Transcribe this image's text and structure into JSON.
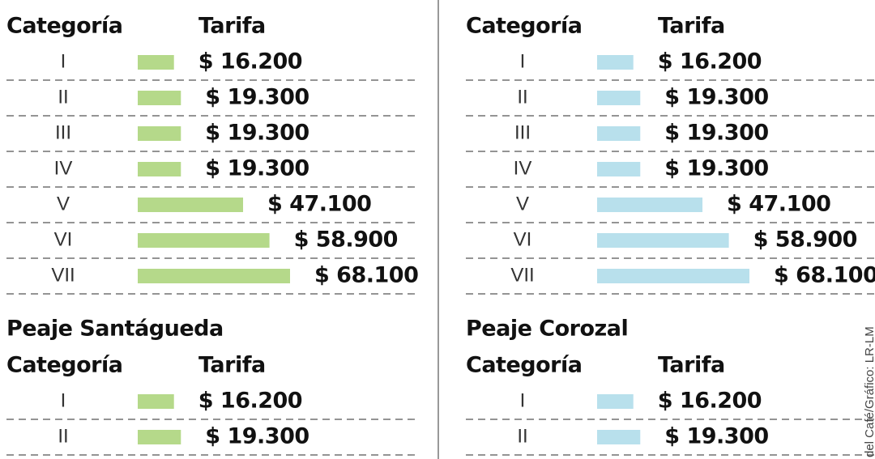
{
  "chart_data": [
    {
      "type": "bar",
      "category_header": "Categoría",
      "value_header": "Tarifa",
      "categories": [
        "I",
        "II",
        "III",
        "IV",
        "V",
        "VI",
        "VII"
      ],
      "values": [
        16200,
        19300,
        19300,
        19300,
        47100,
        58900,
        68100
      ],
      "value_labels": [
        "$ 16.200",
        "$ 19.300",
        "$ 19.300",
        "$ 19.300",
        "$ 47.100",
        "$ 58.900",
        "$ 68.100"
      ],
      "color": "#b5d98a"
    },
    {
      "type": "bar",
      "category_header": "Categoría",
      "value_header": "Tarifa",
      "categories": [
        "I",
        "II",
        "III",
        "IV",
        "V",
        "VI",
        "VII"
      ],
      "values": [
        16200,
        19300,
        19300,
        19300,
        47100,
        58900,
        68100
      ],
      "value_labels": [
        "$ 16.200",
        "$ 19.300",
        "$ 19.300",
        "$ 19.300",
        "$ 47.100",
        "$ 58.900",
        "$ 68.100"
      ],
      "color": "#b8e0ec"
    },
    {
      "type": "bar",
      "title": "Peaje Santágueda",
      "category_header": "Categoría",
      "value_header": "Tarifa",
      "categories": [
        "I",
        "II"
      ],
      "values": [
        16200,
        19300
      ],
      "value_labels": [
        "$ 16.200",
        "$ 19.300"
      ],
      "color": "#b5d98a"
    },
    {
      "type": "bar",
      "title": "Peaje Corozal",
      "category_header": "Categoría",
      "value_header": "Tarifa",
      "categories": [
        "I",
        "II"
      ],
      "values": [
        16200,
        19300
      ],
      "value_labels": [
        "$ 16.200",
        "$ 19.300"
      ],
      "color": "#b8e0ec"
    }
  ],
  "source": "del Café/Gráfico: LR-LM"
}
